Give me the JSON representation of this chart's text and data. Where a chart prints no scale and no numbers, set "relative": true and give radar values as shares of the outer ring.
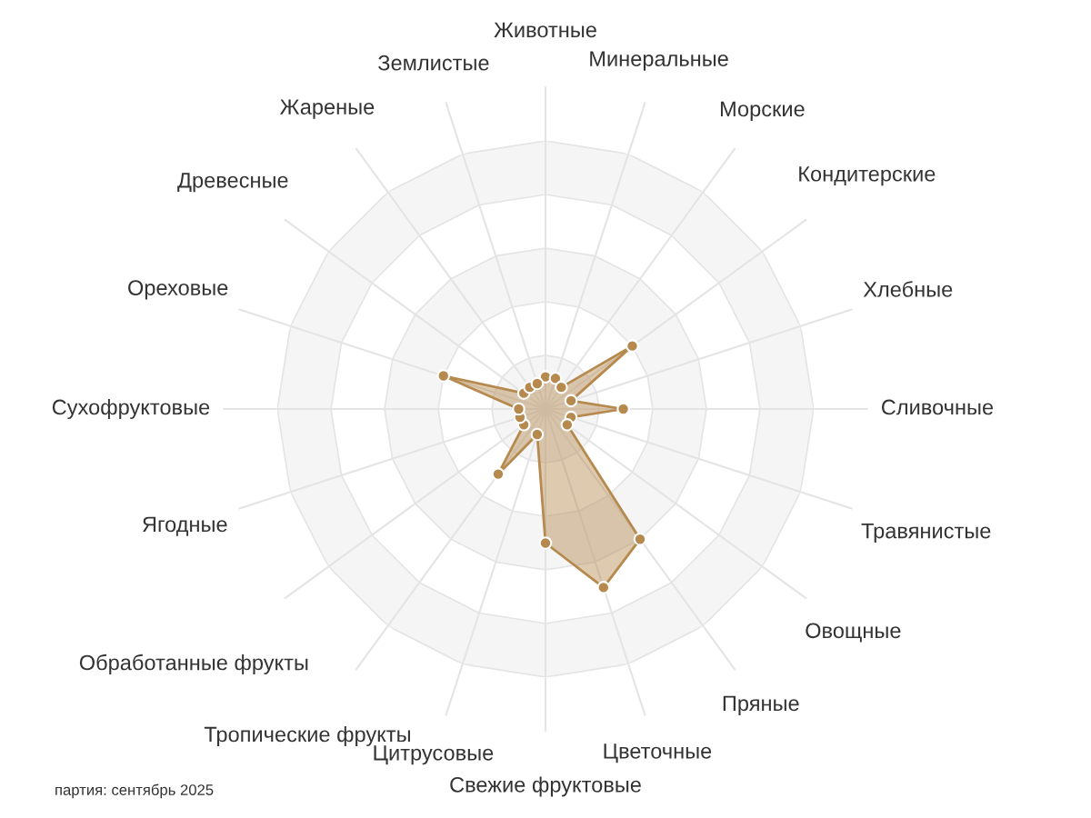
{
  "chart_data": {
    "type": "radar",
    "relative": true,
    "grid": true,
    "marker": "circle",
    "categories": [
      "Животные",
      "Минеральные",
      "Морские",
      "Кондитерские",
      "Хлебные",
      "Сливочные",
      "Травянистые",
      "Овощные",
      "Пряные",
      "Цветочные",
      "Свежие фруктовые",
      "Цитрусовые",
      "Тропические фрукты",
      "Обработанные фрукты",
      "Ягодные",
      "Сухофруктовые",
      "Ореховые",
      "Древесные",
      "Жареные",
      "Землистые"
    ],
    "series": [
      {
        "color": "#b68a4e",
        "values": [
          0.12,
          0.12,
          0.1,
          0.4,
          0.1,
          0.29,
          0.1,
          0.1,
          0.6,
          0.7,
          0.5,
          0.1,
          0.3,
          0.1,
          0.1,
          0.1,
          0.4,
          0.1,
          0.1,
          0.1
        ]
      }
    ],
    "annotations": [
      "партия: сентябрь 2025"
    ]
  }
}
